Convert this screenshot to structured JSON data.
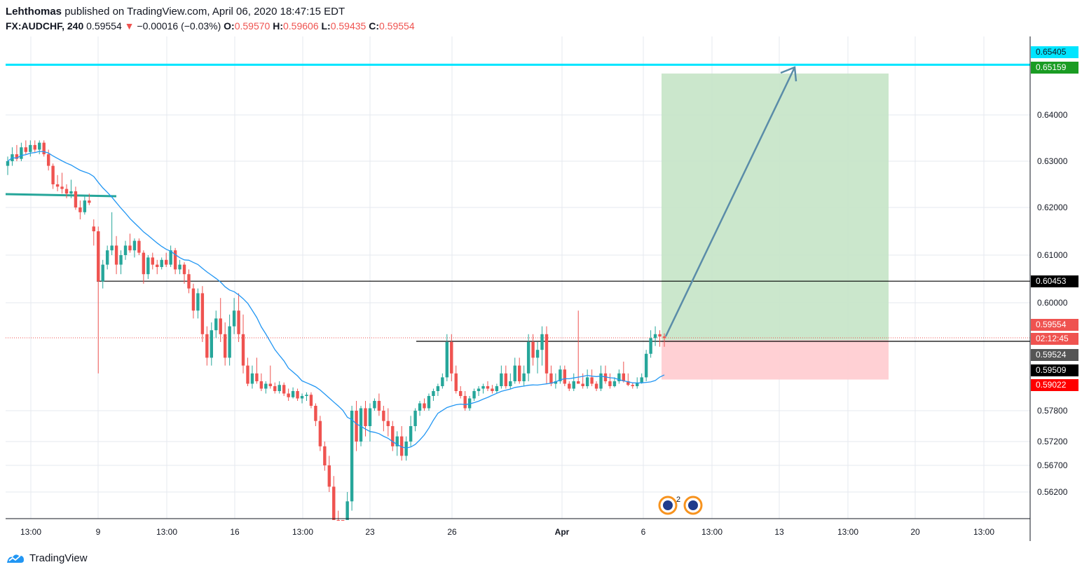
{
  "header": {
    "publisher": "Lehthomas",
    "published_text": "published on TradingView.com, April 06, 2020 18:47:15 EDT",
    "symbol": "FX:AUDCHF, 240",
    "last": "0.59554",
    "change_arrow": "▼",
    "change": "−0.00016 (−0.03%)",
    "open_label": "O:",
    "open": "0.59570",
    "high_label": "H:",
    "high": "0.59606",
    "low_label": "L:",
    "low": "0.59435",
    "close_label": "C:",
    "close": "0.59554"
  },
  "brand": {
    "name": "TradingView",
    "icon": "tradingview-logo-icon"
  },
  "colors": {
    "up": "#26a69a",
    "down": "#ef5350",
    "ma": "#2196f3",
    "resistance": "#00e5ff",
    "target_zone": "#c8e6c9",
    "stop_zone": "#ffcdd2",
    "arrow": "#5a8ca8",
    "trendline": "#26a69a",
    "grid": "#e6e9ef"
  },
  "chart_data": {
    "type": "candlestick",
    "x_ticks": [
      "13:00",
      "9",
      "13:00",
      "16",
      "13:00",
      "23",
      "26",
      "Apr",
      "6",
      "13:00",
      "13",
      "13:00",
      "20",
      "13:00"
    ],
    "y_ticks": [
      "0.64000",
      "0.63000",
      "0.62000",
      "0.61000",
      "0.60000",
      "0.57800",
      "0.57200",
      "0.56700",
      "0.56200"
    ],
    "price_labels": [
      {
        "value": "0.65405",
        "bg": "#00e5ff",
        "fg": "#131722"
      },
      {
        "value": "0.65159",
        "bg": "#1a9c23",
        "fg": "#ffffff"
      },
      {
        "value": "0.60453",
        "bg": "#000000",
        "fg": "#ffffff"
      },
      {
        "value": "0.59554",
        "bg": "#ef5350",
        "fg": "#ffffff"
      },
      {
        "value": "02:12:45",
        "bg": "#ef5350",
        "fg": "#ffffff"
      },
      {
        "value": "0.59524",
        "bg": "#555555",
        "fg": "#ffffff"
      },
      {
        "value": "0.59509",
        "bg": "#000000",
        "fg": "#ffffff"
      },
      {
        "value": "0.59022",
        "bg": "#ff0000",
        "fg": "#ffffff"
      }
    ],
    "levels": {
      "resistance": 0.65405,
      "target": 0.65159,
      "support": 0.60453,
      "breakout": 0.59509,
      "entry": 0.59524,
      "stop": 0.59022,
      "last": 0.59554
    },
    "candles": [
      [
        0.629,
        0.631,
        0.627,
        0.63
      ],
      [
        0.63,
        0.633,
        0.629,
        0.6315
      ],
      [
        0.6315,
        0.6335,
        0.63,
        0.6305
      ],
      [
        0.6305,
        0.634,
        0.63,
        0.633
      ],
      [
        0.633,
        0.6345,
        0.6315,
        0.632
      ],
      [
        0.632,
        0.6345,
        0.631,
        0.6335
      ],
      [
        0.6335,
        0.6345,
        0.632,
        0.6325
      ],
      [
        0.6325,
        0.6345,
        0.6315,
        0.634
      ],
      [
        0.634,
        0.6345,
        0.631,
        0.6315
      ],
      [
        0.6315,
        0.6325,
        0.628,
        0.629
      ],
      [
        0.629,
        0.6295,
        0.624,
        0.625
      ],
      [
        0.625,
        0.627,
        0.6235,
        0.6245
      ],
      [
        0.6245,
        0.6275,
        0.623,
        0.624
      ],
      [
        0.624,
        0.625,
        0.622,
        0.623
      ],
      [
        0.623,
        0.626,
        0.622,
        0.6235
      ],
      [
        0.6235,
        0.6245,
        0.6195,
        0.62
      ],
      [
        0.62,
        0.6215,
        0.6175,
        0.619
      ],
      [
        0.619,
        0.6225,
        0.6185,
        0.6215
      ],
      [
        0.6215,
        0.623,
        0.6205,
        0.621
      ],
      [
        0.616,
        0.6175,
        0.612,
        0.615
      ],
      [
        0.615,
        0.616,
        0.591,
        0.6045
      ],
      [
        0.6045,
        0.609,
        0.603,
        0.608
      ],
      [
        0.608,
        0.612,
        0.607,
        0.611
      ],
      [
        0.611,
        0.619,
        0.61,
        0.612
      ],
      [
        0.612,
        0.614,
        0.606,
        0.608
      ],
      [
        0.608,
        0.611,
        0.606,
        0.61
      ],
      [
        0.61,
        0.613,
        0.609,
        0.612
      ],
      [
        0.612,
        0.6145,
        0.6105,
        0.611
      ],
      [
        0.611,
        0.6135,
        0.6095,
        0.613
      ],
      [
        0.613,
        0.6135,
        0.61,
        0.6105
      ],
      [
        0.6105,
        0.611,
        0.604,
        0.606
      ],
      [
        0.606,
        0.61,
        0.605,
        0.6095
      ],
      [
        0.6095,
        0.6105,
        0.607,
        0.608
      ],
      [
        0.608,
        0.609,
        0.606,
        0.6075
      ],
      [
        0.6075,
        0.6095,
        0.607,
        0.609
      ],
      [
        0.609,
        0.6105,
        0.6075,
        0.608
      ],
      [
        0.608,
        0.612,
        0.6075,
        0.611
      ],
      [
        0.611,
        0.6115,
        0.606,
        0.607
      ],
      [
        0.607,
        0.609,
        0.606,
        0.608
      ],
      [
        0.608,
        0.6085,
        0.604,
        0.606
      ],
      [
        0.606,
        0.607,
        0.602,
        0.603
      ],
      [
        0.603,
        0.604,
        0.598,
        0.599
      ],
      [
        0.599,
        0.603,
        0.598,
        0.602
      ],
      [
        0.602,
        0.6035,
        0.595,
        0.596
      ],
      [
        0.596,
        0.597,
        0.592,
        0.593
      ],
      [
        0.593,
        0.5975,
        0.592,
        0.5965
      ],
      [
        0.5965,
        0.599,
        0.5955,
        0.598
      ],
      [
        0.598,
        0.601,
        0.595,
        0.596
      ],
      [
        0.596,
        0.5975,
        0.592,
        0.593
      ],
      [
        0.593,
        0.5985,
        0.592,
        0.597
      ],
      [
        0.597,
        0.601,
        0.596,
        0.599
      ],
      [
        0.599,
        0.602,
        0.595,
        0.596
      ],
      [
        0.596,
        0.5985,
        0.591,
        0.592
      ],
      [
        0.592,
        0.593,
        0.588,
        0.589
      ],
      [
        0.589,
        0.592,
        0.587,
        0.591
      ],
      [
        0.591,
        0.593,
        0.589,
        0.59
      ],
      [
        0.59,
        0.591,
        0.586,
        0.587
      ],
      [
        0.587,
        0.59,
        0.585,
        0.589
      ],
      [
        0.589,
        0.592,
        0.587,
        0.588
      ],
      [
        0.588,
        0.5895,
        0.585,
        0.586
      ],
      [
        0.586,
        0.59,
        0.585,
        0.5885
      ],
      [
        0.5885,
        0.5895,
        0.584,
        0.585
      ],
      [
        0.585,
        0.587,
        0.582,
        0.5835
      ],
      [
        0.5835,
        0.5875,
        0.583,
        0.586
      ],
      [
        0.586,
        0.587,
        0.582,
        0.583
      ],
      [
        0.583,
        0.585,
        0.581,
        0.584
      ],
      [
        0.584,
        0.5855,
        0.582,
        0.5845
      ],
      [
        0.5845,
        0.5855,
        0.579,
        0.58
      ],
      [
        0.58,
        0.581,
        0.575,
        0.576
      ],
      [
        0.576,
        0.577,
        0.57,
        0.571
      ],
      [
        0.571,
        0.572,
        0.566,
        0.567
      ],
      [
        0.567,
        0.569,
        0.562,
        0.563
      ],
      [
        0.563,
        0.565,
        0.558,
        0.559
      ],
      [
        0.559,
        0.56,
        0.556,
        0.5575
      ],
      [
        0.5575,
        0.559,
        0.554,
        0.5555
      ],
      [
        0.5555,
        0.562,
        0.555,
        0.561
      ],
      [
        0.561,
        0.58,
        0.56,
        0.578
      ],
      [
        0.578,
        0.582,
        0.57,
        0.572
      ],
      [
        0.572,
        0.58,
        0.571,
        0.579
      ],
      [
        0.579,
        0.582,
        0.573,
        0.575
      ],
      [
        0.575,
        0.581,
        0.572,
        0.579
      ],
      [
        0.579,
        0.583,
        0.578,
        0.582
      ],
      [
        0.582,
        0.585,
        0.577,
        0.578
      ],
      [
        0.578,
        0.58,
        0.574,
        0.576
      ],
      [
        0.576,
        0.579,
        0.573,
        0.575
      ],
      [
        0.575,
        0.576,
        0.57,
        0.571
      ],
      [
        0.571,
        0.574,
        0.569,
        0.573
      ],
      [
        0.573,
        0.575,
        0.568,
        0.569
      ],
      [
        0.569,
        0.573,
        0.568,
        0.572
      ],
      [
        0.572,
        0.577,
        0.571,
        0.575
      ],
      [
        0.575,
        0.579,
        0.574,
        0.578
      ],
      [
        0.578,
        0.582,
        0.577,
        0.581
      ],
      [
        0.581,
        0.583,
        0.578,
        0.579
      ],
      [
        0.579,
        0.585,
        0.578,
        0.584
      ],
      [
        0.584,
        0.587,
        0.582,
        0.586
      ],
      [
        0.586,
        0.589,
        0.584,
        0.588
      ],
      [
        0.588,
        0.591,
        0.587,
        0.5905
      ],
      [
        0.5905,
        0.596,
        0.59,
        0.595
      ],
      [
        0.595,
        0.596,
        0.59,
        0.591
      ],
      [
        0.591,
        0.592,
        0.585,
        0.586
      ],
      [
        0.586,
        0.588,
        0.583,
        0.584
      ],
      [
        0.584,
        0.586,
        0.578,
        0.579
      ],
      [
        0.579,
        0.584,
        0.578,
        0.583
      ],
      [
        0.583,
        0.587,
        0.582,
        0.586
      ],
      [
        0.586,
        0.588,
        0.584,
        0.587
      ],
      [
        0.587,
        0.589,
        0.585,
        0.588
      ],
      [
        0.588,
        0.59,
        0.586,
        0.587
      ],
      [
        0.587,
        0.5885,
        0.585,
        0.586
      ],
      [
        0.586,
        0.589,
        0.585,
        0.588
      ],
      [
        0.588,
        0.592,
        0.587,
        0.591
      ],
      [
        0.591,
        0.592,
        0.587,
        0.588
      ],
      [
        0.588,
        0.591,
        0.587,
        0.59
      ],
      [
        0.59,
        0.593,
        0.589,
        0.592
      ],
      [
        0.592,
        0.593,
        0.589,
        0.59
      ],
      [
        0.59,
        0.592,
        0.588,
        0.591
      ],
      [
        0.591,
        0.596,
        0.59,
        0.595
      ],
      [
        0.595,
        0.596,
        0.592,
        0.593
      ],
      [
        0.593,
        0.595,
        0.591,
        0.594
      ],
      [
        0.594,
        0.597,
        0.592,
        0.596
      ],
      [
        0.596,
        0.597,
        0.589,
        0.591
      ],
      [
        0.591,
        0.592,
        0.588,
        0.589
      ],
      [
        0.589,
        0.591,
        0.587,
        0.59
      ],
      [
        0.59,
        0.592,
        0.589,
        0.5915
      ],
      [
        0.5915,
        0.592,
        0.588,
        0.589
      ],
      [
        0.589,
        0.59,
        0.586,
        0.587
      ],
      [
        0.587,
        0.591,
        0.586,
        0.59
      ],
      [
        0.59,
        0.599,
        0.589,
        0.589
      ],
      [
        0.589,
        0.591,
        0.587,
        0.588
      ],
      [
        0.588,
        0.5915,
        0.587,
        0.5905
      ],
      [
        0.5905,
        0.5915,
        0.588,
        0.589
      ],
      [
        0.589,
        0.59,
        0.586,
        0.587
      ],
      [
        0.587,
        0.592,
        0.586,
        0.591
      ],
      [
        0.591,
        0.592,
        0.589,
        0.59
      ],
      [
        0.59,
        0.591,
        0.587,
        0.588
      ],
      [
        0.588,
        0.5905,
        0.5875,
        0.59
      ],
      [
        0.59,
        0.5915,
        0.589,
        0.591
      ],
      [
        0.591,
        0.5925,
        0.5895,
        0.59
      ],
      [
        0.59,
        0.591,
        0.588,
        0.5885
      ],
      [
        0.5885,
        0.5895,
        0.587,
        0.588
      ],
      [
        0.588,
        0.5905,
        0.587,
        0.5895
      ],
      [
        0.5895,
        0.591,
        0.589,
        0.5905
      ],
      [
        0.5905,
        0.594,
        0.59,
        0.5935
      ],
      [
        0.5935,
        0.5965,
        0.593,
        0.5955
      ],
      [
        0.5955,
        0.597,
        0.5945,
        0.596
      ],
      [
        0.596,
        0.5965,
        0.5944,
        0.5957
      ],
      [
        0.5957,
        0.5961,
        0.5944,
        0.5955
      ]
    ]
  }
}
